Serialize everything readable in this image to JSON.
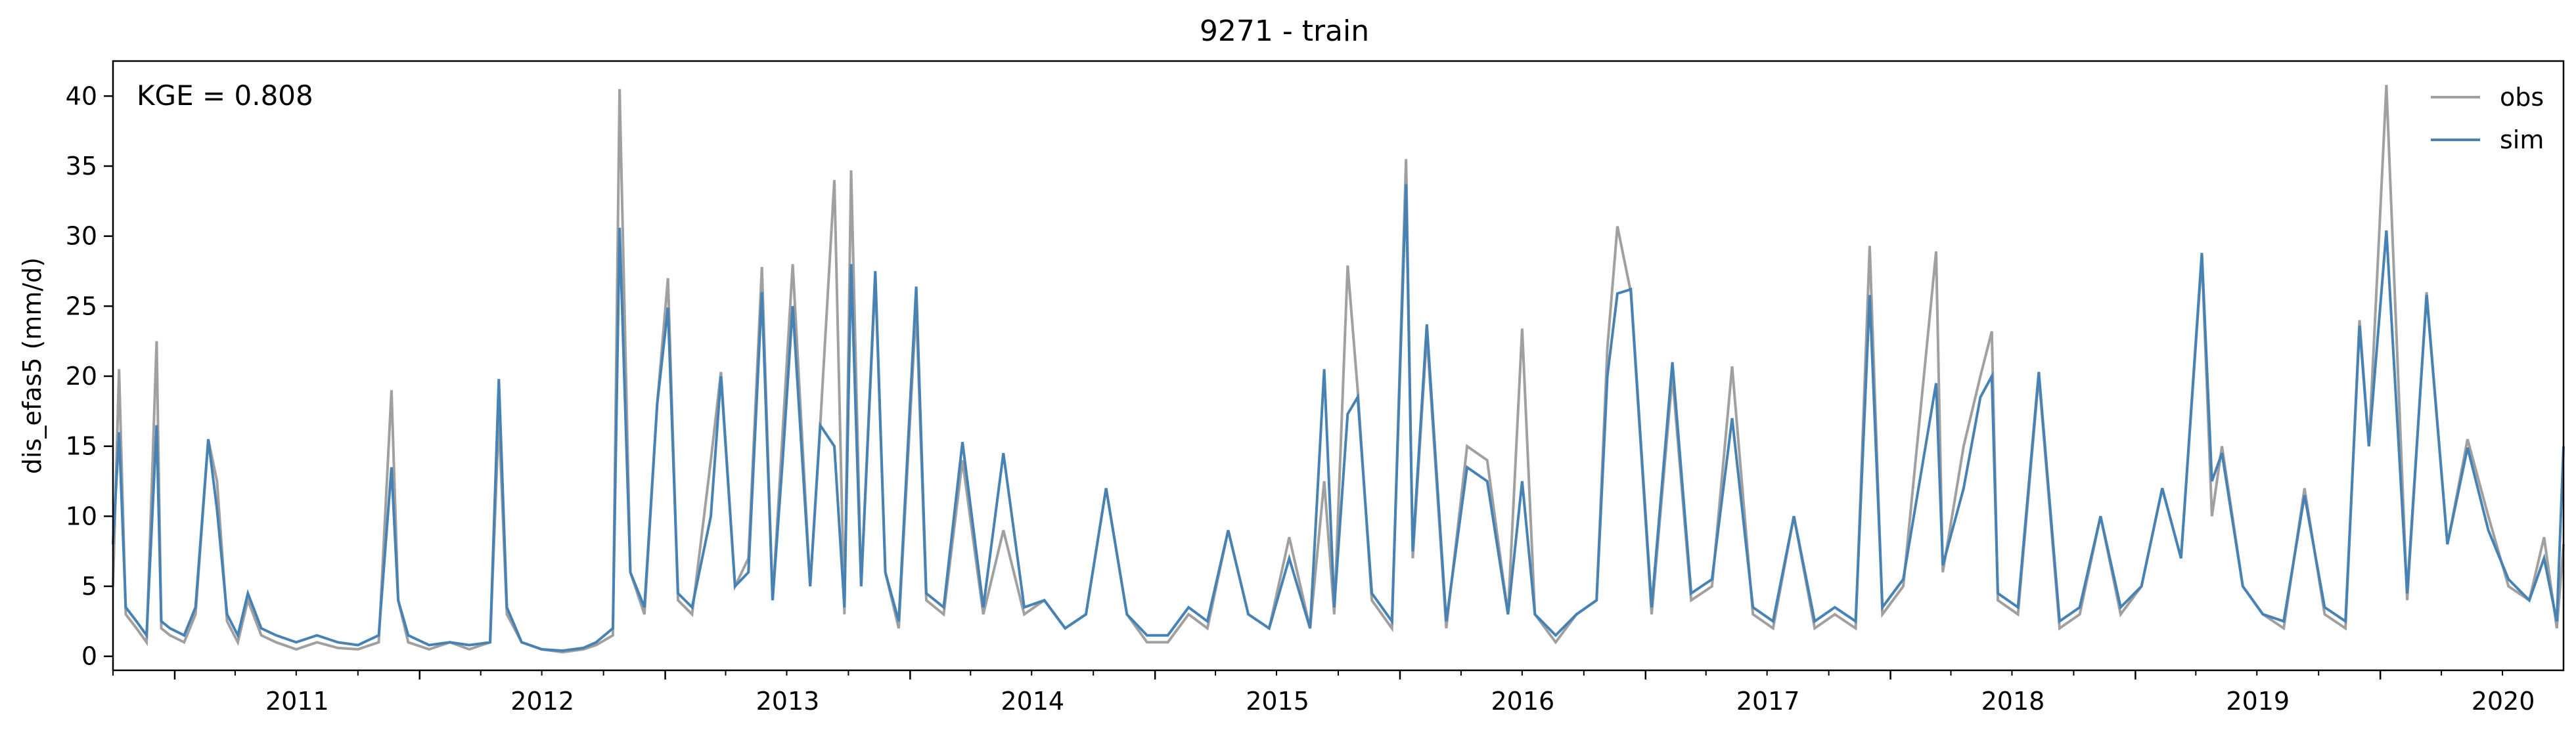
{
  "chart_data": {
    "type": "line",
    "title": "9271 - train",
    "ylabel": "dis_efas5 (mm/d)",
    "xlabel": "",
    "annotation": "KGE = 0.808",
    "xlim": [
      "2010-10-01",
      "2020-09-30"
    ],
    "ylim": [
      -1,
      42.5
    ],
    "yticks": [
      0,
      5,
      10,
      15,
      20,
      25,
      30,
      35,
      40
    ],
    "xticks": [
      {
        "date": "2011-01-01",
        "label": "2011"
      },
      {
        "date": "2012-01-01",
        "label": "2012"
      },
      {
        "date": "2013-01-01",
        "label": "2013"
      },
      {
        "date": "2014-01-01",
        "label": "2014"
      },
      {
        "date": "2015-01-01",
        "label": "2015"
      },
      {
        "date": "2016-01-01",
        "label": "2016"
      },
      {
        "date": "2017-01-01",
        "label": "2017"
      },
      {
        "date": "2018-01-01",
        "label": "2018"
      },
      {
        "date": "2019-01-01",
        "label": "2019"
      },
      {
        "date": "2020-01-01",
        "label": "2020"
      }
    ],
    "grid": false,
    "legend_position": "top-right",
    "colors": {
      "obs": "#a0a0a0",
      "sim": "#4682b4"
    },
    "series": [
      {
        "name": "obs",
        "x": [
          "2010-10-01",
          "2010-10-10",
          "2010-10-20",
          "2010-11-05",
          "2010-11-20",
          "2010-12-05",
          "2010-12-12",
          "2010-12-25",
          "2011-01-15",
          "2011-02-01",
          "2011-02-20",
          "2011-03-05",
          "2011-03-20",
          "2011-04-05",
          "2011-04-20",
          "2011-05-10",
          "2011-06-01",
          "2011-07-01",
          "2011-08-01",
          "2011-09-01",
          "2011-10-01",
          "2011-11-01",
          "2011-11-20",
          "2011-11-30",
          "2011-12-15",
          "2012-01-15",
          "2012-02-15",
          "2012-03-15",
          "2012-04-15",
          "2012-04-28",
          "2012-05-10",
          "2012-06-01",
          "2012-07-01",
          "2012-08-01",
          "2012-09-01",
          "2012-09-20",
          "2012-10-15",
          "2012-10-25",
          "2012-11-10",
          "2012-12-01",
          "2012-12-20",
          "2013-01-05",
          "2013-01-20",
          "2013-02-10",
          "2013-03-10",
          "2013-03-25",
          "2013-04-15",
          "2013-05-05",
          "2013-05-25",
          "2013-06-10",
          "2013-06-25",
          "2013-07-10",
          "2013-08-05",
          "2013-08-20",
          "2013-09-10",
          "2013-09-25",
          "2013-10-05",
          "2013-10-20",
          "2013-11-10",
          "2013-11-25",
          "2013-12-15",
          "2014-01-10",
          "2014-01-25",
          "2014-02-20",
          "2014-03-20",
          "2014-04-20",
          "2014-05-20",
          "2014-06-20",
          "2014-07-20",
          "2014-08-20",
          "2014-09-20",
          "2014-10-20",
          "2014-11-20",
          "2014-12-20",
          "2015-01-20",
          "2015-02-20",
          "2015-03-20",
          "2015-04-20",
          "2015-05-20",
          "2015-06-20",
          "2015-07-20",
          "2015-08-20",
          "2015-09-10",
          "2015-09-25",
          "2015-10-15",
          "2015-10-30",
          "2015-11-20",
          "2015-12-20",
          "2016-01-10",
          "2016-01-20",
          "2016-02-10",
          "2016-03-10",
          "2016-04-10",
          "2016-05-10",
          "2016-06-10",
          "2016-07-01",
          "2016-07-20",
          "2016-08-20",
          "2016-09-20",
          "2016-10-20",
          "2016-11-05",
          "2016-11-20",
          "2016-12-10",
          "2017-01-10",
          "2017-02-10",
          "2017-03-10",
          "2017-04-10",
          "2017-05-10",
          "2017-06-10",
          "2017-07-10",
          "2017-08-10",
          "2017-09-10",
          "2017-10-10",
          "2017-11-10",
          "2017-12-01",
          "2017-12-20",
          "2018-01-20",
          "2018-03-10",
          "2018-03-20",
          "2018-04-20",
          "2018-05-15",
          "2018-06-01",
          "2018-06-10",
          "2018-07-10",
          "2018-08-10",
          "2018-09-10",
          "2018-10-10",
          "2018-11-10",
          "2018-12-10",
          "2019-01-10",
          "2019-02-10",
          "2019-03-10",
          "2019-04-10",
          "2019-04-25",
          "2019-05-10",
          "2019-06-10",
          "2019-07-10",
          "2019-08-10",
          "2019-09-10",
          "2019-10-10",
          "2019-11-10",
          "2019-12-01",
          "2019-12-15",
          "2020-01-10",
          "2020-02-10",
          "2020-03-10",
          "2020-04-10",
          "2020-05-10",
          "2020-06-10",
          "2020-07-10",
          "2020-08-10",
          "2020-09-01",
          "2020-09-20",
          "2020-09-30"
        ],
        "y": [
          5.0,
          20.5,
          3.0,
          2.0,
          1.0,
          22.5,
          2.0,
          1.5,
          1.0,
          3.0,
          15.5,
          12.5,
          2.5,
          1.0,
          4.0,
          1.5,
          1.0,
          0.5,
          1.0,
          0.6,
          0.5,
          1.0,
          19.0,
          4.0,
          1.0,
          0.5,
          1.0,
          0.5,
          1.0,
          17.0,
          3.0,
          1.0,
          0.5,
          0.3,
          0.5,
          0.8,
          1.5,
          40.5,
          6.0,
          3.0,
          18.0,
          27.0,
          4.0,
          3.0,
          14.0,
          20.3,
          5.0,
          7.0,
          27.8,
          4.0,
          16.0,
          28.0,
          5.0,
          16.5,
          34.0,
          3.0,
          34.7,
          5.0,
          27.0,
          6.0,
          2.0,
          25.0,
          4.0,
          3.0,
          14.0,
          3.0,
          9.0,
          3.0,
          4.0,
          2.0,
          3.0,
          12.0,
          3.0,
          1.0,
          1.0,
          3.0,
          2.0,
          9.0,
          3.0,
          2.0,
          8.5,
          2.0,
          12.5,
          3.0,
          27.9,
          19.0,
          4.0,
          2.0,
          35.5,
          7.0,
          23.0,
          2.0,
          15.0,
          14.0,
          3.0,
          23.4,
          3.0,
          1.0,
          3.0,
          4.0,
          22.0,
          30.7,
          26.0,
          3.0,
          20.0,
          4.0,
          5.0,
          20.7,
          3.0,
          2.0,
          10.0,
          2.0,
          3.0,
          2.0,
          29.3,
          3.0,
          5.0,
          28.9,
          6.0,
          15.0,
          20.0,
          23.2,
          4.0,
          3.0,
          20.0,
          2.0,
          3.0,
          10.0,
          3.0,
          5.0,
          12.0,
          7.0,
          28.5,
          10.0,
          15.0,
          5.0,
          3.0,
          2.0,
          12.0,
          3.0,
          2.0,
          24.0,
          15.0,
          40.8,
          4.0,
          26.0,
          8.0,
          15.5,
          10.0,
          5.0,
          4.0,
          8.5,
          2.0,
          8.0
        ]
      },
      {
        "name": "sim",
        "x": [
          "2010-10-01",
          "2010-10-10",
          "2010-10-20",
          "2010-11-05",
          "2010-11-20",
          "2010-12-05",
          "2010-12-12",
          "2010-12-25",
          "2011-01-15",
          "2011-02-01",
          "2011-02-20",
          "2011-03-05",
          "2011-03-20",
          "2011-04-05",
          "2011-04-20",
          "2011-05-10",
          "2011-06-01",
          "2011-07-01",
          "2011-08-01",
          "2011-09-01",
          "2011-10-01",
          "2011-11-01",
          "2011-11-20",
          "2011-11-30",
          "2011-12-15",
          "2012-01-15",
          "2012-02-15",
          "2012-03-15",
          "2012-04-15",
          "2012-04-28",
          "2012-05-10",
          "2012-06-01",
          "2012-07-01",
          "2012-08-01",
          "2012-09-01",
          "2012-09-20",
          "2012-10-15",
          "2012-10-25",
          "2012-11-10",
          "2012-12-01",
          "2012-12-20",
          "2013-01-05",
          "2013-01-20",
          "2013-02-10",
          "2013-03-10",
          "2013-03-25",
          "2013-04-15",
          "2013-05-05",
          "2013-05-25",
          "2013-06-10",
          "2013-06-25",
          "2013-07-10",
          "2013-08-05",
          "2013-08-20",
          "2013-09-10",
          "2013-09-25",
          "2013-10-05",
          "2013-10-20",
          "2013-11-10",
          "2013-11-25",
          "2013-12-15",
          "2014-01-10",
          "2014-01-25",
          "2014-02-20",
          "2014-03-20",
          "2014-04-20",
          "2014-05-20",
          "2014-06-20",
          "2014-07-20",
          "2014-08-20",
          "2014-09-20",
          "2014-10-20",
          "2014-11-20",
          "2014-12-20",
          "2015-01-20",
          "2015-02-20",
          "2015-03-20",
          "2015-04-20",
          "2015-05-20",
          "2015-06-20",
          "2015-07-20",
          "2015-08-20",
          "2015-09-10",
          "2015-09-25",
          "2015-10-15",
          "2015-10-30",
          "2015-11-20",
          "2015-12-20",
          "2016-01-10",
          "2016-01-20",
          "2016-02-10",
          "2016-03-10",
          "2016-04-10",
          "2016-05-10",
          "2016-06-10",
          "2016-07-01",
          "2016-07-20",
          "2016-08-20",
          "2016-09-20",
          "2016-10-20",
          "2016-11-05",
          "2016-11-20",
          "2016-12-10",
          "2017-01-10",
          "2017-02-10",
          "2017-03-10",
          "2017-04-10",
          "2017-05-10",
          "2017-06-10",
          "2017-07-10",
          "2017-08-10",
          "2017-09-10",
          "2017-10-10",
          "2017-11-10",
          "2017-12-01",
          "2017-12-20",
          "2018-01-20",
          "2018-03-10",
          "2018-03-20",
          "2018-04-20",
          "2018-05-15",
          "2018-06-01",
          "2018-06-10",
          "2018-07-10",
          "2018-08-10",
          "2018-09-10",
          "2018-10-10",
          "2018-11-10",
          "2018-12-10",
          "2019-01-10",
          "2019-02-10",
          "2019-03-10",
          "2019-04-10",
          "2019-04-25",
          "2019-05-10",
          "2019-06-10",
          "2019-07-10",
          "2019-08-10",
          "2019-09-10",
          "2019-10-10",
          "2019-11-10",
          "2019-12-01",
          "2019-12-15",
          "2020-01-10",
          "2020-02-10",
          "2020-03-10",
          "2020-04-10",
          "2020-05-10",
          "2020-06-10",
          "2020-07-10",
          "2020-08-10",
          "2020-09-01",
          "2020-09-20",
          "2020-09-30"
        ],
        "y": [
          8.0,
          16.0,
          3.5,
          2.5,
          1.5,
          16.5,
          2.5,
          2.0,
          1.5,
          3.5,
          15.5,
          10.5,
          3.0,
          1.5,
          4.5,
          2.0,
          1.5,
          1.0,
          1.5,
          1.0,
          0.8,
          1.5,
          13.5,
          4.0,
          1.5,
          0.8,
          1.0,
          0.8,
          1.0,
          19.8,
          3.5,
          1.0,
          0.5,
          0.4,
          0.6,
          1.0,
          2.0,
          30.6,
          6.0,
          3.5,
          18.0,
          24.9,
          4.5,
          3.5,
          10.0,
          20.0,
          5.0,
          6.0,
          26.0,
          4.0,
          14.0,
          25.0,
          5.0,
          16.5,
          15.0,
          3.5,
          28.0,
          5.0,
          27.5,
          6.0,
          2.5,
          26.4,
          4.5,
          3.5,
          15.3,
          3.5,
          14.5,
          3.5,
          4.0,
          2.0,
          3.0,
          12.0,
          3.0,
          1.5,
          1.5,
          3.5,
          2.5,
          9.0,
          3.0,
          2.0,
          7.0,
          2.0,
          20.5,
          3.5,
          17.3,
          18.5,
          4.5,
          2.5,
          33.7,
          7.5,
          23.7,
          2.5,
          13.5,
          12.5,
          3.0,
          12.5,
          3.0,
          1.5,
          3.0,
          4.0,
          20.0,
          25.9,
          26.2,
          3.5,
          21.0,
          4.5,
          5.5,
          17.0,
          3.5,
          2.5,
          10.0,
          2.5,
          3.5,
          2.5,
          25.8,
          3.5,
          5.5,
          19.5,
          6.5,
          12.0,
          18.5,
          20.0,
          4.5,
          3.5,
          20.3,
          2.5,
          3.5,
          10.0,
          3.5,
          5.0,
          12.0,
          7.0,
          28.8,
          12.5,
          14.5,
          5.0,
          3.0,
          2.5,
          11.5,
          3.5,
          2.5,
          23.6,
          15.0,
          30.4,
          4.5,
          25.8,
          8.0,
          14.9,
          9.0,
          5.5,
          4.0,
          7.0,
          2.5,
          15.0
        ]
      }
    ]
  }
}
